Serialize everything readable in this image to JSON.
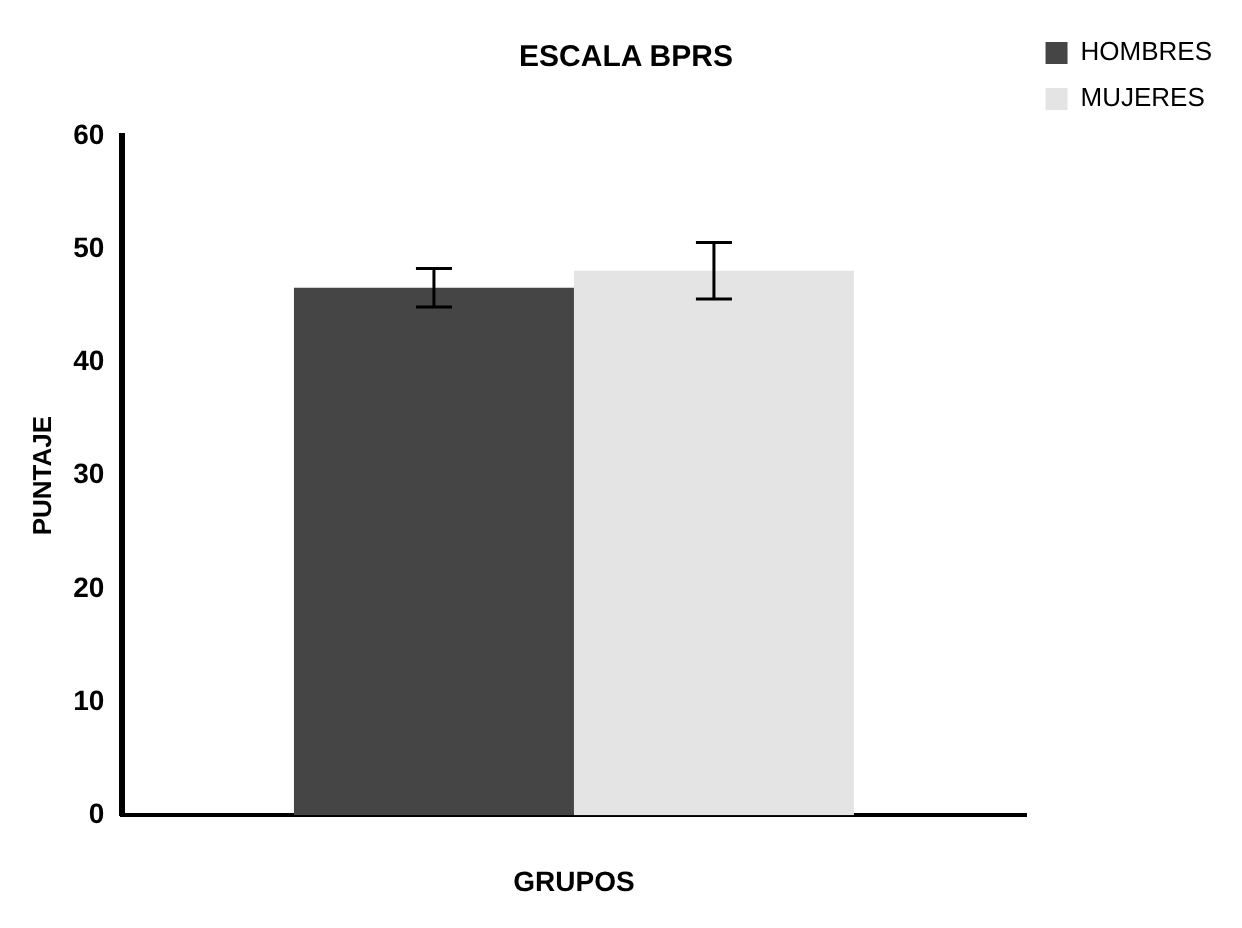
{
  "chart_data": {
    "type": "bar",
    "title": "ESCALA BPRS",
    "xlabel": "GRUPOS",
    "ylabel": "PUNTAJE",
    "categories": [
      null
    ],
    "series": [
      {
        "name": "HOMBRES",
        "color": "#454545",
        "values": [
          46.6
        ],
        "errors": [
          1.7
        ]
      },
      {
        "name": "MUJERES",
        "color": "#e4e4e4",
        "values": [
          48.1
        ],
        "errors": [
          2.5
        ]
      }
    ],
    "ylim": [
      0,
      60
    ],
    "yticks": [
      0,
      10,
      20,
      30,
      40,
      50,
      60
    ],
    "grid": false,
    "legend": "top right"
  }
}
